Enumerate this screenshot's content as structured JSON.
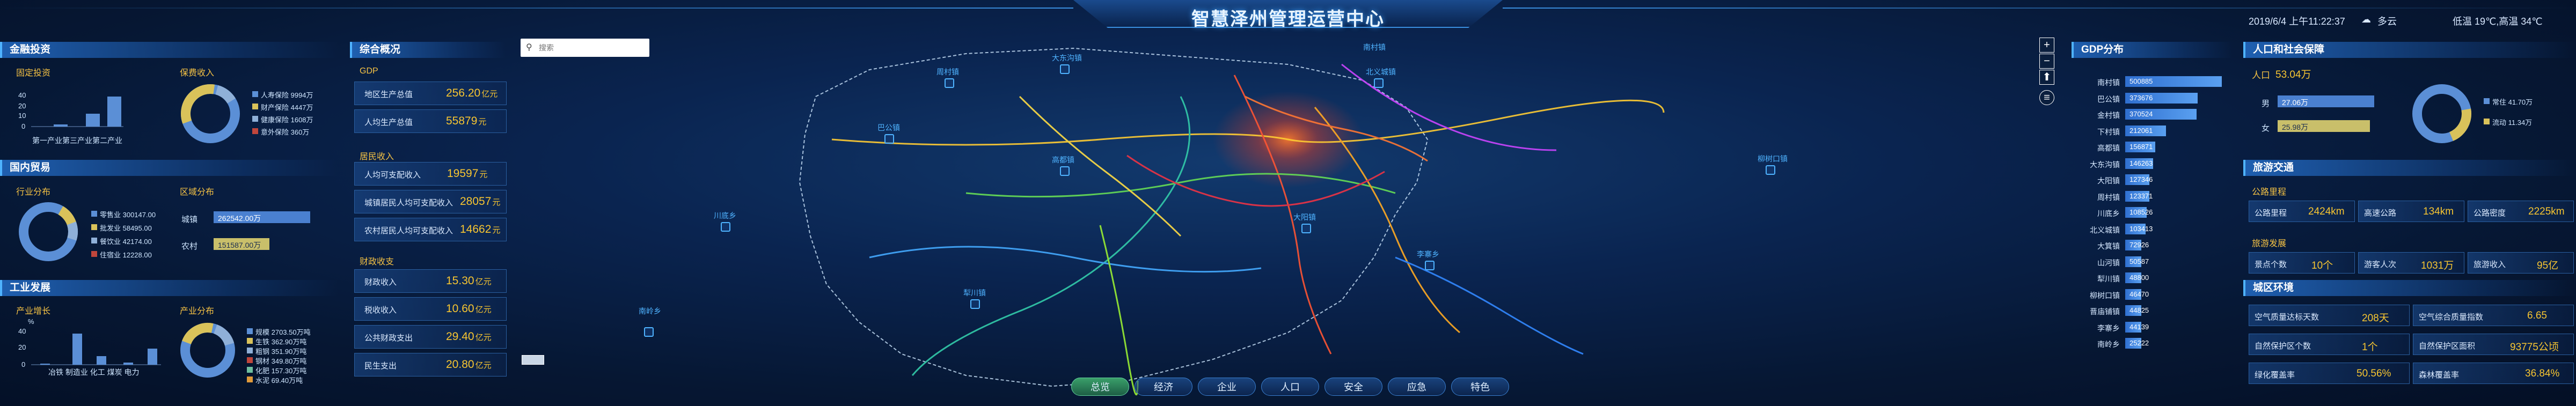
{
  "header": {
    "title": "智慧泽州管理运营中心",
    "datetime": "2019/6/4 上午11:22:37",
    "weather": "多云",
    "temp": "低温 19℃,高温 34℃"
  },
  "search": {
    "placeholder": "搜索"
  },
  "finance": {
    "title": "金融投资",
    "fixed_asset_label": "固定投资",
    "insurance_label": "保费收入",
    "y_ticks": [
      "40",
      "20",
      "10",
      "0"
    ],
    "categories": "第一产业第三产业第二产业",
    "legend": [
      "人寿保险 9994万",
      "财产保险 4447万",
      "健康保险 1608万",
      "意外保险 360万"
    ]
  },
  "trade": {
    "title": "国内贸易",
    "industry_label": "行业分布",
    "region_label": "区域分布",
    "legend": [
      "零售业 300147.00",
      "批发业 58495.00",
      "餐饮业 42174.00",
      "住宿业 12228.00"
    ],
    "city_label": "城镇",
    "city_value": "262542.00万",
    "rural_label": "农村",
    "rural_value": "151587.00万"
  },
  "industry": {
    "title": "工业发展",
    "growth_label": "产业增长",
    "dist_label": "产业分布",
    "unit": "%",
    "y_ticks": [
      "40",
      "20",
      "0"
    ],
    "categories": "冶铁 制造业 化工 煤炭 电力",
    "legend": [
      "规模 2703.50万吨",
      "生铁 362.90万吨",
      "粗钢 351.90万吨",
      "钢材 349.80万吨",
      "化肥 157.30万吨",
      "水泥 69.40万吨"
    ]
  },
  "overview": {
    "title": "综合概况",
    "gdp_label": "GDP",
    "rows1": [
      {
        "k": "地区生产总值",
        "v": "256.20",
        "u": "亿元"
      },
      {
        "k": "人均生产总值",
        "v": "55879",
        "u": "元"
      }
    ],
    "income_label": "居民收入",
    "rows2": [
      {
        "k": "人均可支配收入",
        "v": "19597",
        "u": "元"
      },
      {
        "k": "城镇居民人均可支配收入",
        "v": "28057",
        "u": "元"
      },
      {
        "k": "农村居民人均可支配收入",
        "v": "14662",
        "u": "元"
      }
    ],
    "fiscal_label": "财政收支",
    "rows3": [
      {
        "k": "财政收入",
        "v": "15.30",
        "u": "亿元"
      },
      {
        "k": "税收收入",
        "v": "10.60",
        "u": "亿元"
      },
      {
        "k": "公共财政支出",
        "v": "29.40",
        "u": "亿元"
      },
      {
        "k": "民生支出",
        "v": "20.80",
        "u": "亿元"
      }
    ]
  },
  "gdp_dist": {
    "title": "GDP分布",
    "rows": [
      {
        "name": "南村镇",
        "value": "500885",
        "frac": 1.0
      },
      {
        "name": "巴公镇",
        "value": "373676",
        "frac": 0.75
      },
      {
        "name": "金村镇",
        "value": "370524",
        "frac": 0.74
      },
      {
        "name": "下村镇",
        "value": "212061",
        "frac": 0.42
      },
      {
        "name": "高都镇",
        "value": "156871",
        "frac": 0.31
      },
      {
        "name": "大东沟镇",
        "value": "146263",
        "frac": 0.29
      },
      {
        "name": "大阳镇",
        "value": "127346",
        "frac": 0.25
      },
      {
        "name": "周村镇",
        "value": "123371",
        "frac": 0.25
      },
      {
        "name": "川底乡",
        "value": "108526",
        "frac": 0.22
      },
      {
        "name": "北义城镇",
        "value": "103413",
        "frac": 0.21
      },
      {
        "name": "大箕镇",
        "value": "72926",
        "frac": 0.15
      },
      {
        "name": "山河镇",
        "value": "50587",
        "frac": 0.1
      },
      {
        "name": "犁川镇",
        "value": "48800",
        "frac": 0.1
      },
      {
        "name": "柳树口镇",
        "value": "46470",
        "frac": 0.09
      },
      {
        "name": "晋庙铺镇",
        "value": "44825",
        "frac": 0.09
      },
      {
        "name": "李寨乡",
        "value": "44139",
        "frac": 0.09
      },
      {
        "name": "南岭乡",
        "value": "25222",
        "frac": 0.05
      }
    ]
  },
  "population": {
    "title": "人口和社会保障",
    "total_label": "人口",
    "total_value": "53.04万",
    "male_label": "男",
    "male_value": "27.06万",
    "female_label": "女",
    "female_value": "25.98万",
    "legend": [
      "常住 41.70万",
      "流动 11.34万"
    ]
  },
  "tourism": {
    "title": "旅游交通",
    "road_label": "公路里程",
    "metrics1": [
      {
        "k": "公路里程",
        "v": "2424km"
      },
      {
        "k": "高速公路",
        "v": "134km"
      },
      {
        "k": "公路密度",
        "v": "2225km"
      }
    ],
    "dev_label": "旅游发展",
    "metrics2": [
      {
        "k": "景点个数",
        "v": "10个"
      },
      {
        "k": "游客人次",
        "v": "1031万"
      },
      {
        "k": "旅游收入",
        "v": "95亿"
      }
    ]
  },
  "environment": {
    "title": "城区环境",
    "metrics": [
      {
        "k": "空气质量达标天数",
        "v": "208天"
      },
      {
        "k": "空气综合质量指数",
        "v": "6.65"
      },
      {
        "k": "自然保护区个数",
        "v": "1个"
      },
      {
        "k": "自然保护区面积",
        "v": "93775公顷"
      },
      {
        "k": "绿化覆盖率",
        "v": "50.56%"
      },
      {
        "k": "森林覆盖率",
        "v": "36.84%"
      }
    ]
  },
  "map": {
    "places": [
      "大东沟镇",
      "周村镇",
      "巴公镇",
      "北义城镇",
      "高都镇",
      "柳树口镇",
      "川底乡",
      "大阳镇",
      "李寨乡",
      "南村镇",
      "犁川镇",
      "南岭乡"
    ],
    "scale_text": "—"
  },
  "nav": [
    "总览",
    "经济",
    "企业",
    "人口",
    "安全",
    "应急",
    "特色"
  ]
}
